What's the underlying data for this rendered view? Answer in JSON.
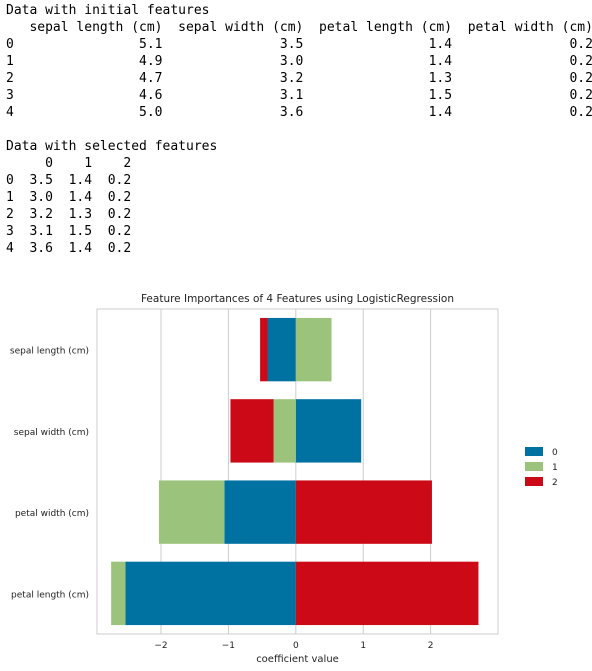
{
  "output": {
    "heading1": "Data with initial features",
    "table1": {
      "columns": [
        "sepal length (cm)",
        "sepal width (cm)",
        "petal length (cm)",
        "petal width (cm)"
      ],
      "index": [
        "0",
        "1",
        "2",
        "3",
        "4"
      ],
      "rows": [
        [
          "5.1",
          "3.5",
          "1.4",
          "0.2"
        ],
        [
          "4.9",
          "3.0",
          "1.4",
          "0.2"
        ],
        [
          "4.7",
          "3.2",
          "1.3",
          "0.2"
        ],
        [
          "4.6",
          "3.1",
          "1.5",
          "0.2"
        ],
        [
          "5.0",
          "3.6",
          "1.4",
          "0.2"
        ]
      ]
    },
    "heading2": "Data with selected features",
    "table2": {
      "columns": [
        "0",
        "1",
        "2"
      ],
      "index": [
        "0",
        "1",
        "2",
        "3",
        "4"
      ],
      "rows": [
        [
          "3.5",
          "1.4",
          "0.2"
        ],
        [
          "3.0",
          "1.4",
          "0.2"
        ],
        [
          "3.2",
          "1.3",
          "0.2"
        ],
        [
          "3.1",
          "1.5",
          "0.2"
        ],
        [
          "3.6",
          "1.4",
          "0.2"
        ]
      ]
    }
  },
  "chart_data": {
    "type": "bar",
    "orientation": "horizontal",
    "stacked": true,
    "title": "Feature Importances of 4 Features using LogisticRegression",
    "xlabel": "coefficient value",
    "ylabel": "",
    "categories": [
      "sepal length (cm)",
      "sepal width (cm)",
      "petal width (cm)",
      "petal length (cm)"
    ],
    "series": [
      {
        "name": "0",
        "color": "#0072a2",
        "values": [
          -0.42,
          0.97,
          -1.06,
          -2.53
        ]
      },
      {
        "name": "1",
        "color": "#9bc37c",
        "values": [
          0.53,
          -0.33,
          -0.97,
          -0.21
        ]
      },
      {
        "name": "2",
        "color": "#cc0a17",
        "values": [
          -0.11,
          -0.64,
          2.02,
          2.71
        ]
      }
    ],
    "xlim": [
      -2.95,
      3.0
    ],
    "xticks": [
      "−2",
      "−1",
      "0",
      "1",
      "2"
    ],
    "xtick_values": [
      -2,
      -1,
      0,
      1,
      2
    ],
    "grid": true,
    "legend": "right"
  }
}
